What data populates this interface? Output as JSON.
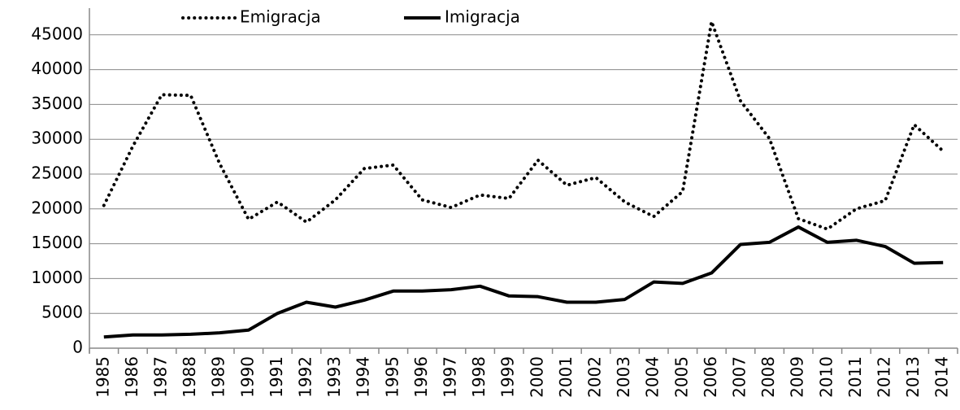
{
  "chart_data": {
    "type": "line",
    "categories": [
      "1985",
      "1986",
      "1987",
      "1988",
      "1989",
      "1990",
      "1991",
      "1992",
      "1993",
      "1994",
      "1995",
      "1996",
      "1997",
      "1998",
      "1999",
      "2000",
      "2001",
      "2002",
      "2003",
      "2004",
      "2005",
      "2006",
      "2007",
      "2008",
      "2009",
      "2010",
      "2011",
      "2012",
      "2013",
      "2014"
    ],
    "series": [
      {
        "name": "Emigracja",
        "color": "#000000",
        "style": "dotted",
        "values": [
          20500,
          29000,
          36400,
          36300,
          26500,
          18500,
          21000,
          18100,
          21300,
          25800,
          26300,
          21300,
          20200,
          22000,
          21500,
          27000,
          23400,
          24500,
          21000,
          18900,
          22500,
          46900,
          35500,
          30100,
          18600,
          17100,
          20000,
          21200,
          32100,
          28300
        ]
      },
      {
        "name": "Imigracja",
        "color": "#000000",
        "style": "solid",
        "values": [
          1600,
          1900,
          1900,
          2000,
          2200,
          2600,
          5000,
          6600,
          5900,
          6900,
          8200,
          8200,
          8400,
          8900,
          7500,
          7400,
          6600,
          6600,
          7000,
          9500,
          9300,
          10800,
          14900,
          15200,
          17400,
          15200,
          15500,
          14600,
          12200,
          12300
        ]
      }
    ],
    "ylim": [
      0,
      50000
    ],
    "yticks": [
      0,
      5000,
      10000,
      15000,
      20000,
      25000,
      30000,
      35000,
      40000,
      45000
    ],
    "grid": true,
    "legend": "top"
  }
}
